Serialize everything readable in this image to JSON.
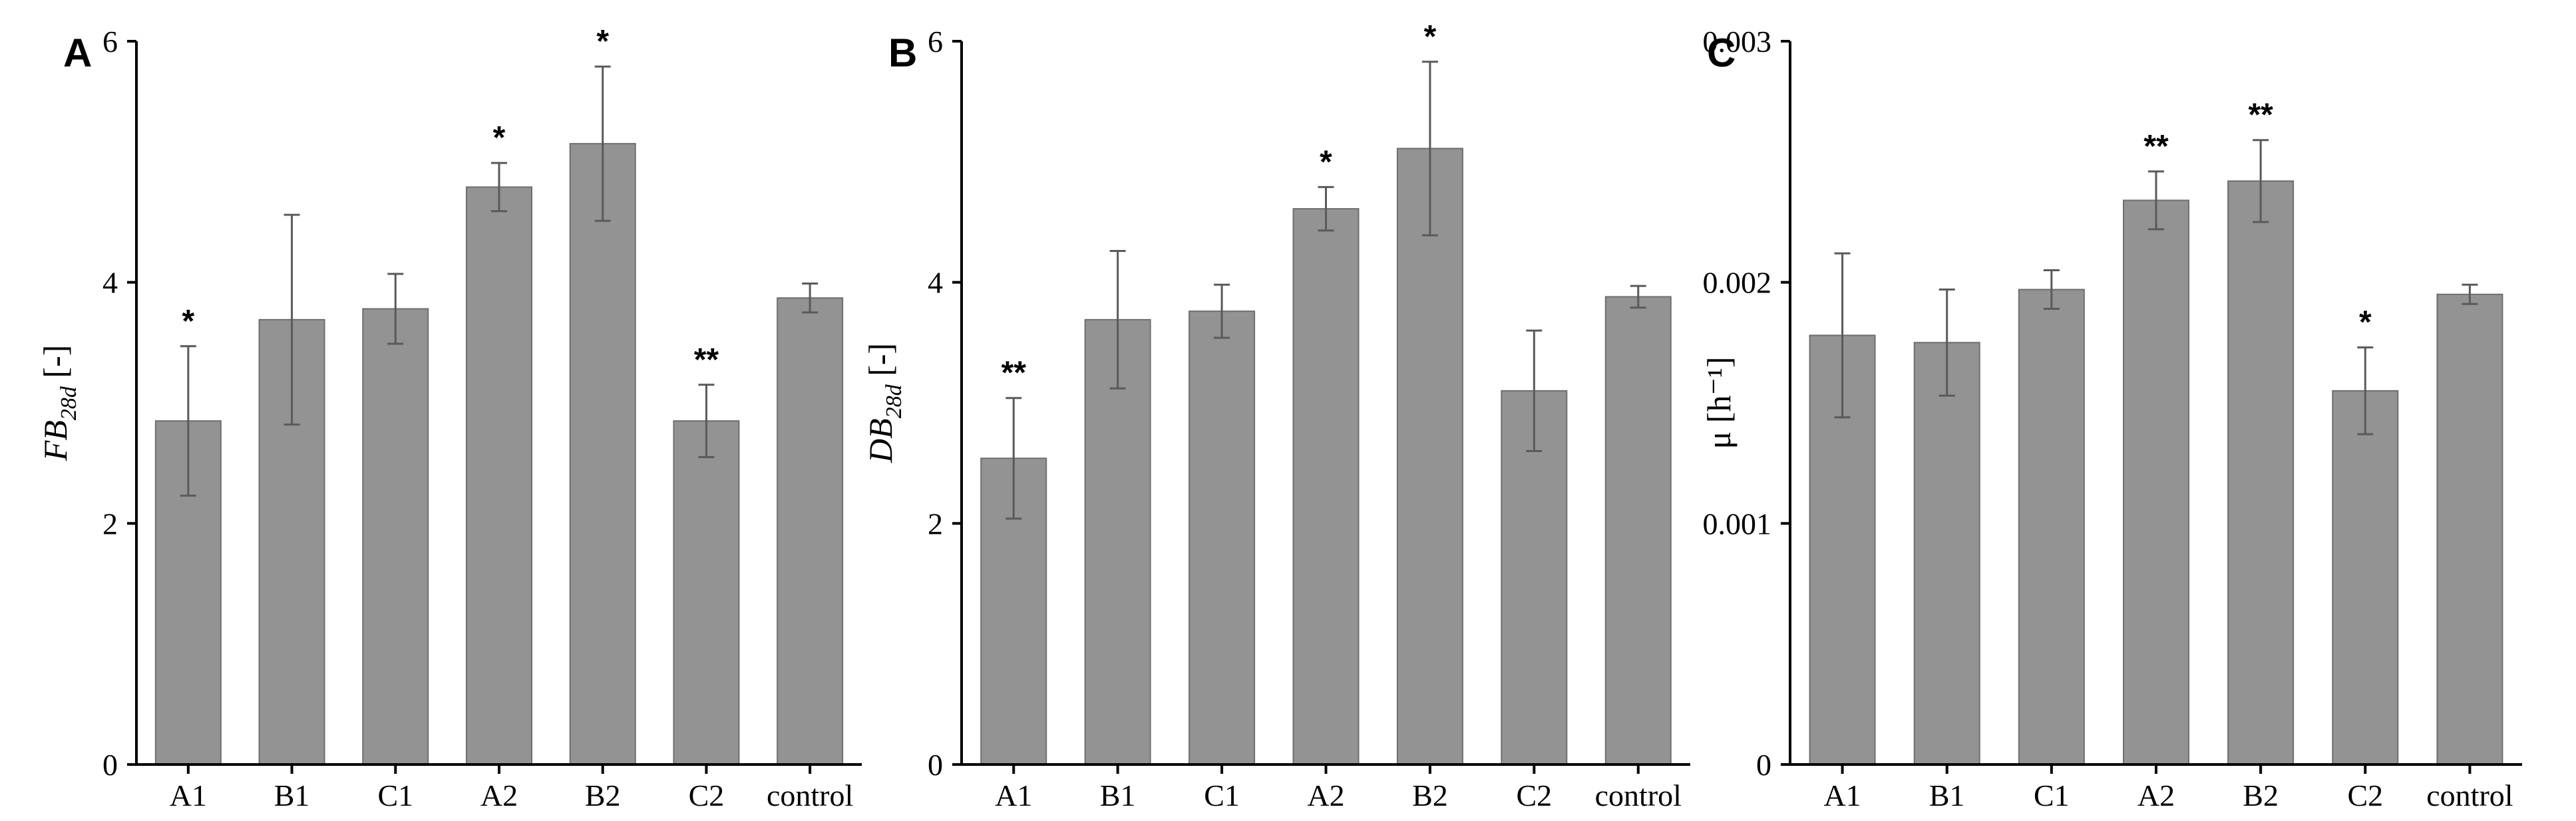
{
  "chart_data": [
    {
      "type": "bar",
      "panel": "A",
      "title": "",
      "ylabel_main": "FB",
      "ylabel_sub": "28d",
      "ylabel_unit": " [-]",
      "categories": [
        "A1",
        "B1",
        "C1",
        "A2",
        "B2",
        "C2",
        "control"
      ],
      "values": [
        2.85,
        3.69,
        3.78,
        4.79,
        5.15,
        2.85,
        3.87
      ],
      "errors": [
        0.62,
        0.87,
        0.29,
        0.2,
        0.64,
        0.3,
        0.12
      ],
      "significance": [
        "*",
        "",
        "",
        "*",
        "*",
        "**",
        ""
      ],
      "ylim": [
        0,
        6
      ],
      "yticks": [
        0,
        2,
        4,
        6
      ],
      "ytick_labels": [
        "0",
        "2",
        "4",
        "6"
      ]
    },
    {
      "type": "bar",
      "panel": "B",
      "title": "",
      "ylabel_main": "DB",
      "ylabel_sub": "28d",
      "ylabel_unit": " [-]",
      "categories": [
        "A1",
        "B1",
        "C1",
        "A2",
        "B2",
        "C2",
        "control"
      ],
      "values": [
        2.54,
        3.69,
        3.76,
        4.61,
        5.11,
        3.1,
        3.88
      ],
      "errors": [
        0.5,
        0.57,
        0.22,
        0.18,
        0.72,
        0.5,
        0.09
      ],
      "significance": [
        "**",
        "",
        "",
        "*",
        "*",
        "",
        ""
      ],
      "ylim": [
        0,
        6
      ],
      "yticks": [
        0,
        2,
        4,
        6
      ],
      "ytick_labels": [
        "0",
        "2",
        "4",
        "6"
      ]
    },
    {
      "type": "bar",
      "panel": "C",
      "title": "",
      "ylabel_main": "μ",
      "ylabel_sub": "",
      "ylabel_unit": " [h⁻¹]",
      "categories": [
        "A1",
        "B1",
        "C1",
        "A2",
        "B2",
        "C2",
        "control"
      ],
      "values": [
        0.00178,
        0.00175,
        0.00197,
        0.00234,
        0.00242,
        0.00155,
        0.00195
      ],
      "errors": [
        0.00034,
        0.00022,
        8e-05,
        0.00012,
        0.00017,
        0.00018,
        4e-05
      ],
      "significance": [
        "",
        "",
        "",
        "**",
        "**",
        "*",
        ""
      ],
      "ylim": [
        0,
        0.003
      ],
      "yticks": [
        0,
        0.001,
        0.002,
        0.003
      ],
      "ytick_labels": [
        "0",
        "0.001",
        "0.002",
        "0.003"
      ]
    }
  ]
}
